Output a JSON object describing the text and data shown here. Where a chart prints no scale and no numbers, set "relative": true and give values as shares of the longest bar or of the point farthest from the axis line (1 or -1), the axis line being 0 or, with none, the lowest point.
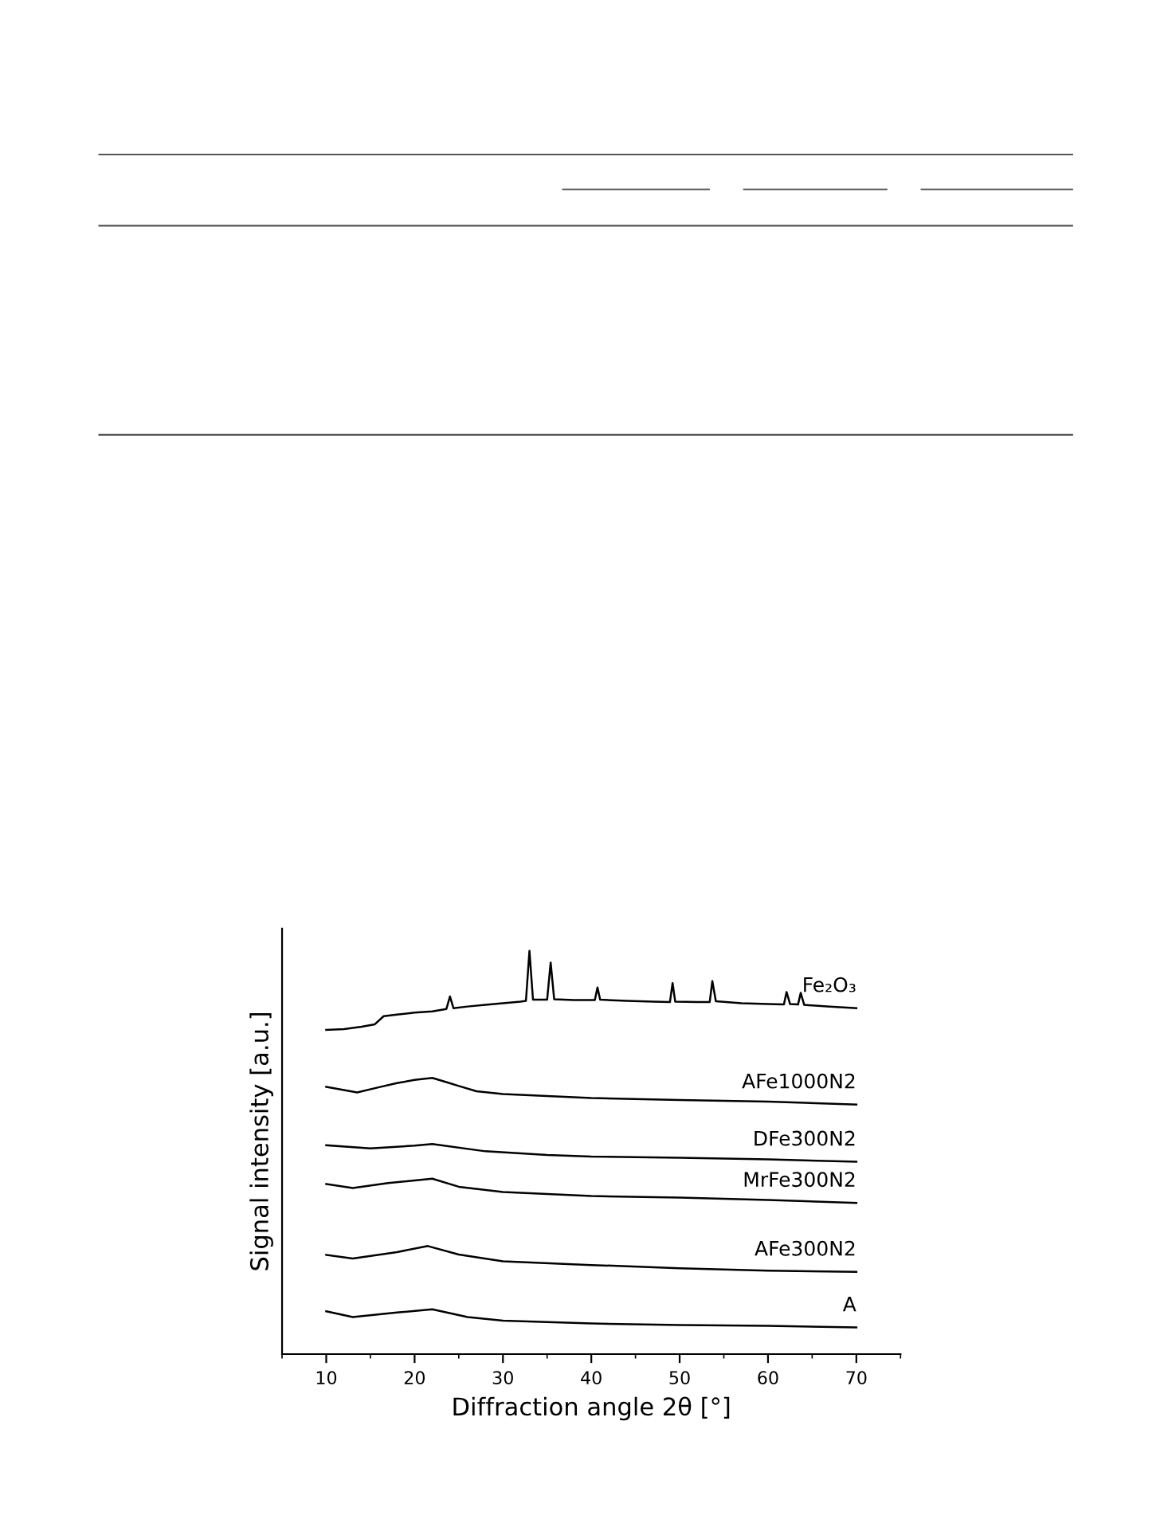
{
  "chart_data": {
    "type": "line",
    "relative": true,
    "xlabel": "Diffraction angle 2θ [°]",
    "ylabel": "Signal intensity [a.u.]",
    "xlim": [
      5,
      75
    ],
    "xticks": [
      10,
      20,
      30,
      40,
      50,
      60,
      70
    ],
    "grid": false,
    "legend": false,
    "marker": "none",
    "line_style": "solid",
    "series": [
      {
        "name": "A",
        "color": "#000000",
        "x": [
          10,
          13,
          18,
          22,
          26,
          30,
          40,
          50,
          60,
          70
        ],
        "values": [
          0.106,
          0.092,
          0.103,
          0.111,
          0.092,
          0.083,
          0.076,
          0.072,
          0.07,
          0.066
        ]
      },
      {
        "name": "AFe300N2",
        "color": "#000000",
        "x": [
          10,
          13,
          18,
          21.5,
          25,
          30,
          40,
          50,
          60,
          70
        ],
        "values": [
          0.246,
          0.237,
          0.253,
          0.268,
          0.247,
          0.23,
          0.221,
          0.213,
          0.207,
          0.204
        ]
      },
      {
        "name": "MrFe300N2",
        "color": "#000000",
        "x": [
          10,
          13,
          17,
          22,
          25,
          30,
          40,
          50,
          60,
          70
        ],
        "values": [
          0.422,
          0.412,
          0.424,
          0.435,
          0.415,
          0.402,
          0.392,
          0.388,
          0.382,
          0.375
        ]
      },
      {
        "name": "DFe300N2",
        "color": "#000000",
        "x": [
          10,
          15,
          20,
          22,
          28,
          35,
          40,
          50,
          60,
          70
        ],
        "values": [
          0.518,
          0.51,
          0.517,
          0.521,
          0.503,
          0.494,
          0.49,
          0.487,
          0.483,
          0.477
        ]
      },
      {
        "name": "AFe1000N2",
        "color": "#000000",
        "x": [
          10,
          12,
          13.5,
          16,
          18,
          20,
          22,
          23.5,
          25,
          27,
          30,
          35,
          40,
          50,
          60,
          70
        ],
        "values": [
          0.663,
          0.655,
          0.649,
          0.662,
          0.672,
          0.68,
          0.685,
          0.675,
          0.665,
          0.652,
          0.645,
          0.64,
          0.635,
          0.63,
          0.626,
          0.619
        ]
      },
      {
        "name": "Fe₂O₃",
        "color": "#000000",
        "x": [
          10,
          12,
          14,
          15.5,
          16.5,
          18,
          20,
          22,
          23.6,
          24,
          24.4,
          26,
          28,
          30,
          32,
          32.6,
          33,
          33.4,
          35,
          35.4,
          35.8,
          38,
          40.4,
          40.7,
          41,
          44,
          47,
          48.9,
          49.2,
          49.5,
          52,
          53.4,
          53.7,
          54.1,
          57,
          60,
          61.8,
          62.1,
          62.5,
          63.4,
          63.7,
          64.1,
          67,
          70
        ],
        "values": [
          0.804,
          0.806,
          0.812,
          0.818,
          0.838,
          0.842,
          0.847,
          0.85,
          0.856,
          0.887,
          0.858,
          0.862,
          0.866,
          0.87,
          0.874,
          0.876,
          1.0,
          0.879,
          0.879,
          0.971,
          0.88,
          0.878,
          0.878,
          0.909,
          0.879,
          0.876,
          0.874,
          0.873,
          0.92,
          0.874,
          0.873,
          0.873,
          0.925,
          0.875,
          0.87,
          0.868,
          0.867,
          0.898,
          0.868,
          0.867,
          0.896,
          0.866,
          0.862,
          0.858
        ]
      }
    ]
  }
}
